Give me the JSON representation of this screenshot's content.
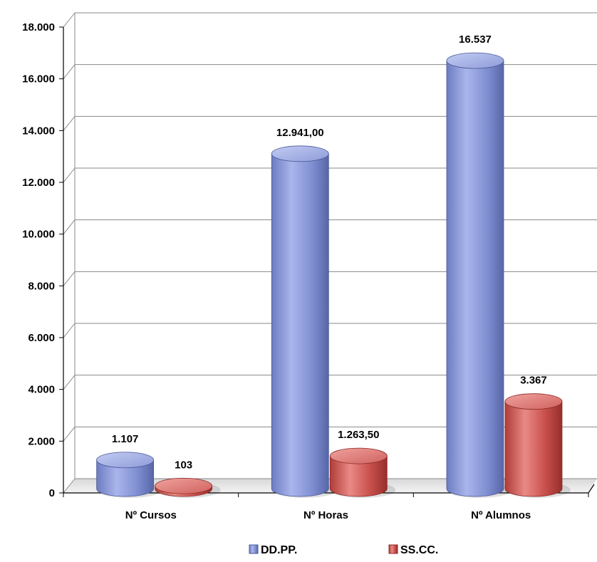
{
  "chart_data": {
    "type": "bar",
    "style": "3d-cylinder",
    "categories": [
      "Nº Cursos",
      "Nº Horas",
      "Nº Alumnos"
    ],
    "series": [
      {
        "name": "DD.PP.",
        "values": [
          1107,
          12941,
          16537
        ],
        "labels": [
          "1.107",
          "12.941,00",
          "16.537"
        ],
        "color": "#8494d4"
      },
      {
        "name": "SS.CC.",
        "values": [
          103,
          1263.5,
          3367
        ],
        "labels": [
          "103",
          "1.263,50",
          "3.367"
        ],
        "color": "#c9504c"
      }
    ],
    "ylim": [
      0,
      18000
    ],
    "y_ticks": [
      0,
      2000,
      4000,
      6000,
      8000,
      10000,
      12000,
      14000,
      16000,
      18000
    ],
    "y_tick_labels": [
      "0",
      "2.000",
      "4.000",
      "6.000",
      "8.000",
      "10.000",
      "12.000",
      "14.000",
      "16.000",
      "18.000"
    ],
    "grid": true,
    "legend_position": "bottom"
  }
}
